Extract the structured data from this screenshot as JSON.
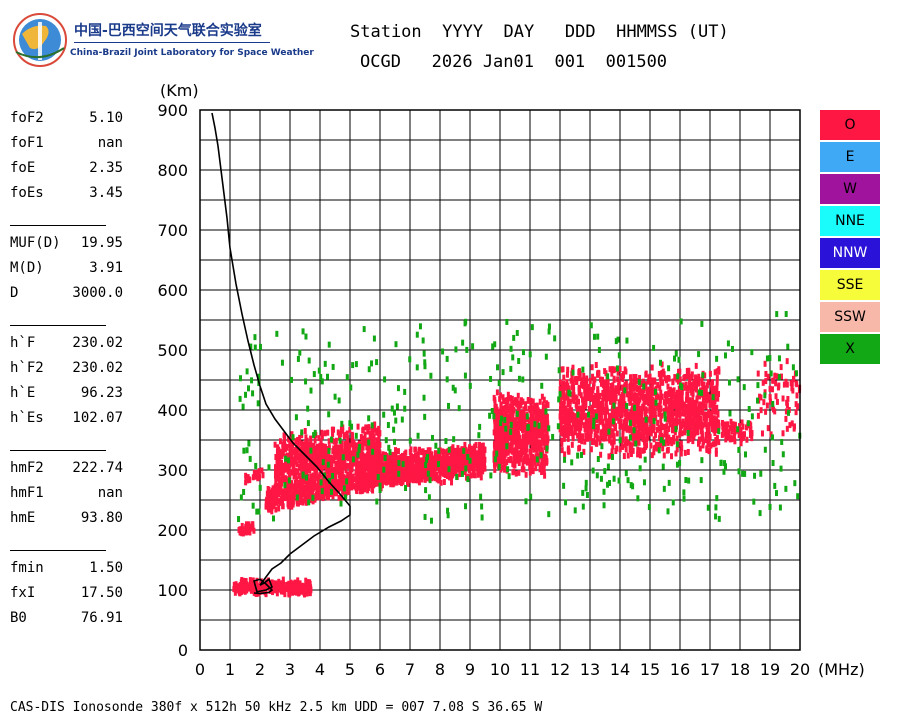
{
  "logo": {
    "name_cn": "中国-巴西空间天气联合实验室",
    "name_en": "China-Brazil Joint Laboratory for Space Weather"
  },
  "header": {
    "line1": "Station  YYYY  DAY   DDD  HHMMSS (UT)",
    "line2": "OCGD   2026 Jan01  001  001500"
  },
  "params": [
    {
      "k": "foF2",
      "v": "5.10"
    },
    {
      "k": "foF1",
      "v": "nan"
    },
    {
      "k": "foE",
      "v": "2.35"
    },
    {
      "k": "foEs",
      "v": "3.45"
    },
    {
      "k": "MUF(D)",
      "v": "19.95"
    },
    {
      "k": "M(D)",
      "v": "3.91"
    },
    {
      "k": "D",
      "v": "3000.0"
    },
    {
      "k": "h`F",
      "v": "230.02"
    },
    {
      "k": "h`F2",
      "v": "230.02"
    },
    {
      "k": "h`E",
      "v": "96.23"
    },
    {
      "k": "h`Es",
      "v": "102.07"
    },
    {
      "k": "hmF2",
      "v": "222.74"
    },
    {
      "k": "hmF1",
      "v": "nan"
    },
    {
      "k": "hmE",
      "v": "93.80"
    },
    {
      "k": "fmin",
      "v": "1.50"
    },
    {
      "k": "fxI",
      "v": "17.50"
    },
    {
      "k": "B0",
      "v": "76.91"
    }
  ],
  "legend": [
    {
      "label": "O",
      "color": "#ff1744"
    },
    {
      "label": "E",
      "color": "#3fa9f5"
    },
    {
      "label": "W",
      "color": "#a0139c"
    },
    {
      "label": "NNE",
      "color": "#1afcfc"
    },
    {
      "label": "NNW",
      "color": "#2a12d8"
    },
    {
      "label": "SSE",
      "color": "#f6fb3a"
    },
    {
      "label": "SSW",
      "color": "#f7b8a9"
    },
    {
      "label": "X",
      "color": "#12a815"
    }
  ],
  "footer": "CAS-DIS Ionosonde 380f x 512h 50 kHz 2.5 km UDD = 007 7.08 S 36.65 W",
  "chart_data": {
    "type": "scatter",
    "xlabel": "(MHz)",
    "ylabel": "(Km)",
    "xlim": [
      0,
      20
    ],
    "ylim": [
      0,
      900
    ],
    "xticks": [
      "0",
      "1",
      "2",
      "3",
      "4",
      "5",
      "6",
      "7",
      "8",
      "9",
      "10",
      "11",
      "12",
      "13",
      "14",
      "15",
      "16",
      "17",
      "18",
      "19",
      "20"
    ],
    "yticks": [
      "0",
      "100",
      "200",
      "300",
      "400",
      "500",
      "600",
      "700",
      "800",
      "900"
    ],
    "grid": true,
    "o_color": "#ff1744",
    "x_color": "#12a815",
    "profile": {
      "x": [
        0.4,
        0.5,
        0.6,
        0.7,
        0.8,
        0.9,
        1.0,
        1.2,
        1.4,
        1.6,
        1.8,
        2.0,
        2.2,
        2.5,
        2.8,
        3.1,
        3.5,
        3.9,
        4.3,
        4.7,
        5.0,
        5.0,
        4.7,
        4.3,
        3.8,
        3.4,
        3.0,
        2.7,
        2.4,
        2.25,
        2.1,
        2.0,
        2.15,
        2.3,
        2.4,
        2.2,
        1.9,
        1.8,
        2.0,
        2.2,
        2.4,
        2.3,
        2.0,
        1.8
      ],
      "y": [
        895,
        870,
        840,
        800,
        760,
        720,
        670,
        610,
        560,
        515,
        475,
        440,
        410,
        385,
        365,
        345,
        325,
        305,
        280,
        258,
        240,
        225,
        215,
        205,
        190,
        175,
        160,
        145,
        135,
        125,
        115,
        108,
        112,
        118,
        105,
        100,
        97,
        115,
        118,
        110,
        100,
        96,
        94,
        95
      ]
    },
    "traces": [
      {
        "name": "O",
        "x0": 1.3,
        "x1": 1.8,
        "ymin": 190,
        "ymax": 200,
        "yrise": 10,
        "spread": 8,
        "n": 50
      },
      {
        "name": "O",
        "x0": 1.5,
        "x1": 2.1,
        "ymin": 280,
        "ymax": 292,
        "yrise": 5,
        "spread": 6,
        "n": 25
      },
      {
        "name": "O",
        "x0": 1.1,
        "x1": 3.7,
        "ymin": 95,
        "ymax": 108,
        "yrise": 0,
        "spread": 14,
        "n": 260
      },
      {
        "name": "O",
        "x0": 2.2,
        "x1": 9.5,
        "ymin": 232,
        "ymax": 258,
        "yrise": 75,
        "spread": 20,
        "n": 900
      },
      {
        "name": "O",
        "x0": 2.5,
        "x1": 6.0,
        "ymin": 270,
        "ymax": 330,
        "yrise": 20,
        "spread": 45,
        "n": 800
      },
      {
        "name": "O",
        "x0": 6.0,
        "x1": 9.5,
        "ymin": 278,
        "ymax": 320,
        "yrise": 10,
        "spread": 22,
        "n": 520
      },
      {
        "name": "O",
        "x0": 9.8,
        "x1": 11.6,
        "ymin": 300,
        "ymax": 400,
        "yrise": 0,
        "spread": 45,
        "n": 700
      },
      {
        "name": "O",
        "x0": 12.0,
        "x1": 17.3,
        "ymin": 335,
        "ymax": 440,
        "yrise": 0,
        "spread": 55,
        "n": 1500
      },
      {
        "name": "O",
        "x0": 17.4,
        "x1": 18.4,
        "ymin": 345,
        "ymax": 378,
        "yrise": 0,
        "spread": 8,
        "n": 70
      },
      {
        "name": "O",
        "x0": 18.5,
        "x1": 20.0,
        "ymin": 360,
        "ymax": 470,
        "yrise": 0,
        "spread": 45,
        "n": 70
      },
      {
        "name": "X",
        "x0": 1.1,
        "x1": 20.0,
        "ymin": 220,
        "ymax": 520,
        "yrise": 0,
        "spread": 60,
        "n": 420
      }
    ]
  }
}
